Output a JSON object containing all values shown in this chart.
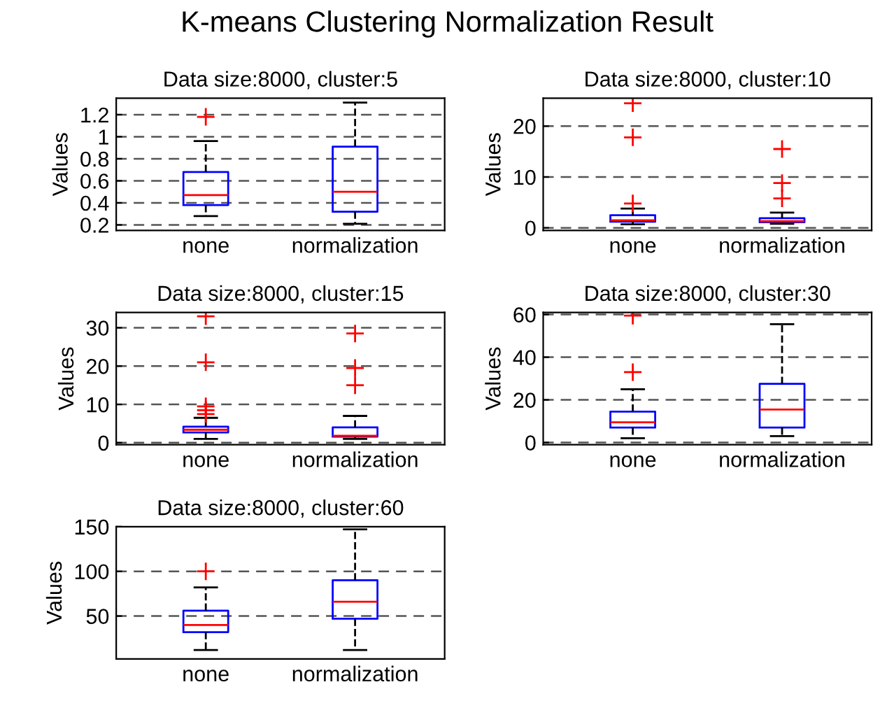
{
  "chart_data": [
    {
      "type": "box",
      "title": "Data size:8000, cluster:5",
      "ylabel": "Values",
      "annotations": [
        "K-means Clustering Normalization Result"
      ],
      "categories": [
        "none",
        "normalization"
      ],
      "color": "#0000ff",
      "grid": "y",
      "ylim": [
        0.15,
        1.35
      ],
      "yticks": [
        0.2,
        0.4,
        0.6,
        0.8,
        1,
        1.2
      ],
      "boxes": [
        {
          "low": 0.28,
          "q1": 0.38,
          "median": 0.47,
          "q3": 0.68,
          "high": 0.96,
          "outliers": [
            1.18
          ]
        },
        {
          "low": 0.21,
          "q1": 0.32,
          "median": 0.5,
          "q3": 0.91,
          "high": 1.31
        }
      ]
    },
    {
      "type": "box",
      "title": "Data size:8000, cluster:10",
      "ylabel": "Values",
      "categories": [
        "none",
        "normalization"
      ],
      "color": "#0000ff",
      "grid": "y",
      "ylim": [
        -0.5,
        25.5
      ],
      "yticks": [
        0,
        10,
        20
      ],
      "boxes": [
        {
          "low": 0.7,
          "q1": 1.2,
          "median": 1.5,
          "q3": 2.5,
          "high": 3.8,
          "outliers": [
            4.8,
            17.8,
            24.5
          ]
        },
        {
          "low": 0.8,
          "q1": 1.1,
          "median": 1.3,
          "q3": 1.9,
          "high": 3,
          "outliers": [
            5.8,
            8.8,
            15.5
          ]
        }
      ]
    },
    {
      "type": "box",
      "title": "Data size:8000, cluster:15",
      "ylabel": "Values",
      "categories": [
        "none",
        "normalization"
      ],
      "color": "#0000ff",
      "grid": "y",
      "ylim": [
        -0.5,
        34
      ],
      "yticks": [
        0,
        10,
        20,
        30
      ],
      "boxes": [
        {
          "low": 1,
          "q1": 2.7,
          "median": 3.4,
          "q3": 4.2,
          "high": 6.5,
          "outliers": [
            7.5,
            8.5,
            9.5,
            21,
            33
          ]
        },
        {
          "low": 1,
          "q1": 1.6,
          "median": 1.8,
          "q3": 4,
          "high": 7,
          "outliers": [
            15,
            19.5,
            28.5
          ]
        }
      ]
    },
    {
      "type": "box",
      "title": "Data size:8000, cluster:30",
      "ylabel": "Values",
      "categories": [
        "none",
        "normalization"
      ],
      "color": "#0000ff",
      "grid": "y",
      "ylim": [
        -1,
        61
      ],
      "yticks": [
        0,
        20,
        40,
        60
      ],
      "boxes": [
        {
          "low": 2,
          "q1": 7,
          "median": 9.5,
          "q3": 14.5,
          "high": 25,
          "outliers": [
            33,
            59.5
          ]
        },
        {
          "low": 3,
          "q1": 7,
          "median": 15.5,
          "q3": 27.5,
          "high": 55.5
        }
      ]
    },
    {
      "type": "box",
      "title": "Data size:8000, cluster:60",
      "ylabel": "Values",
      "categories": [
        "none",
        "normalization"
      ],
      "color": "#0000ff",
      "grid": "y",
      "ylim": [
        2,
        150
      ],
      "yticks": [
        50,
        100,
        150
      ],
      "boxes": [
        {
          "low": 12,
          "q1": 32,
          "median": 40,
          "q3": 56,
          "high": 82,
          "outliers": [
            100
          ]
        },
        {
          "low": 12,
          "q1": 47,
          "median": 66,
          "q3": 90,
          "high": 147
        }
      ]
    }
  ]
}
